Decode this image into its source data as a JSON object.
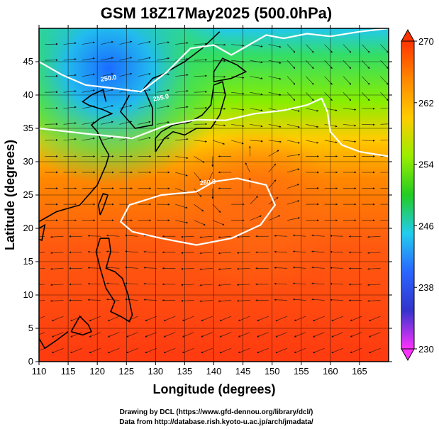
{
  "title": "GSM 18Z17May2025 (500.0hPa)",
  "chart_data": {
    "type": "map",
    "title": "GSM 18Z17May2025 (500.0hPa)",
    "xlabel": "Longitude (degrees)",
    "ylabel": "Latitude  (degrees)",
    "xlim": [
      110,
      170
    ],
    "ylim": [
      0,
      50
    ],
    "x_ticks": [
      110,
      115,
      120,
      125,
      130,
      135,
      140,
      145,
      150,
      155,
      160,
      165
    ],
    "y_ticks": [
      0,
      5,
      10,
      15,
      20,
      25,
      30,
      35,
      40,
      45
    ],
    "grid": true,
    "field": "temperature (K)",
    "overlay": "wind streamlines",
    "contours": [
      {
        "label": "260.0",
        "level": 260,
        "color": "#ffffff"
      },
      {
        "label": "255.0",
        "level": 255,
        "color": "#ffffff"
      },
      {
        "label": "250.0",
        "level": 250,
        "color": "#ffffff"
      }
    ],
    "colorbar": {
      "min": 230,
      "max": 270,
      "tick_values": [
        230,
        238,
        246,
        254,
        262,
        270
      ],
      "tick_labels": [
        "230",
        "238",
        "246",
        "254",
        "262",
        "270"
      ],
      "color_stops": [
        "#ff33ff",
        "#3333cc",
        "#2a66ff",
        "#22ccee",
        "#22cc22",
        "#99ee00",
        "#ffcc00",
        "#ff8800",
        "#ff3300"
      ]
    }
  },
  "footer": {
    "line1": "Drawing by DCL (https://www.gfd-dennou.org/library/dcl/)",
    "line2": "Data from http://database.rish.kyoto-u.ac.jp/arch/jmadata/"
  }
}
